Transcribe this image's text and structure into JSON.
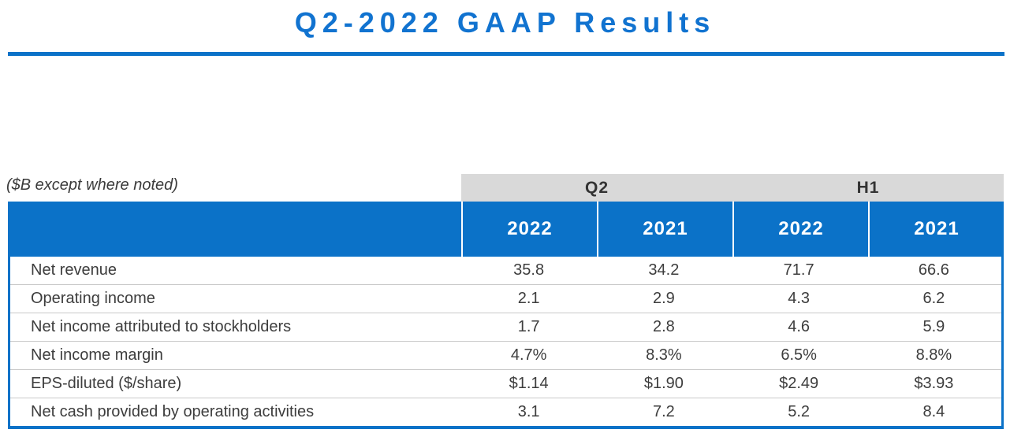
{
  "slide": {
    "title": "Q2-2022 GAAP Results",
    "units_note": "($B except where noted)"
  },
  "colors": {
    "accent_blue": "#0b72c8",
    "title_blue": "#1173d0",
    "group_band_gray": "#d9d9d9",
    "year_header_text": "#ffffff",
    "body_text": "#3d3d3d",
    "row_divider": "#c9c9c9"
  },
  "chart_data": {
    "type": "table",
    "title": "Q2-2022 GAAP Results",
    "units_note": "($B except where noted)",
    "column_groups": [
      {
        "label": "Q2",
        "span": 2
      },
      {
        "label": "H1",
        "span": 2
      }
    ],
    "columns": [
      "2022",
      "2021",
      "2022",
      "2021"
    ],
    "rows": [
      {
        "label": "Net revenue",
        "values": [
          "35.8",
          "34.2",
          "71.7",
          "66.6"
        ]
      },
      {
        "label": "Operating income",
        "values": [
          "2.1",
          "2.9",
          "4.3",
          "6.2"
        ]
      },
      {
        "label": "Net income attributed to stockholders",
        "values": [
          "1.7",
          "2.8",
          "4.6",
          "5.9"
        ]
      },
      {
        "label": "Net income margin",
        "values": [
          "4.7%",
          "8.3%",
          "6.5%",
          "8.8%"
        ]
      },
      {
        "label": "EPS-diluted ($/share)",
        "values": [
          "$1.14",
          "$1.90",
          "$2.49",
          "$3.93"
        ]
      },
      {
        "label": "Net cash provided by operating activities",
        "values": [
          "3.1",
          "7.2",
          "5.2",
          "8.4"
        ]
      }
    ]
  }
}
